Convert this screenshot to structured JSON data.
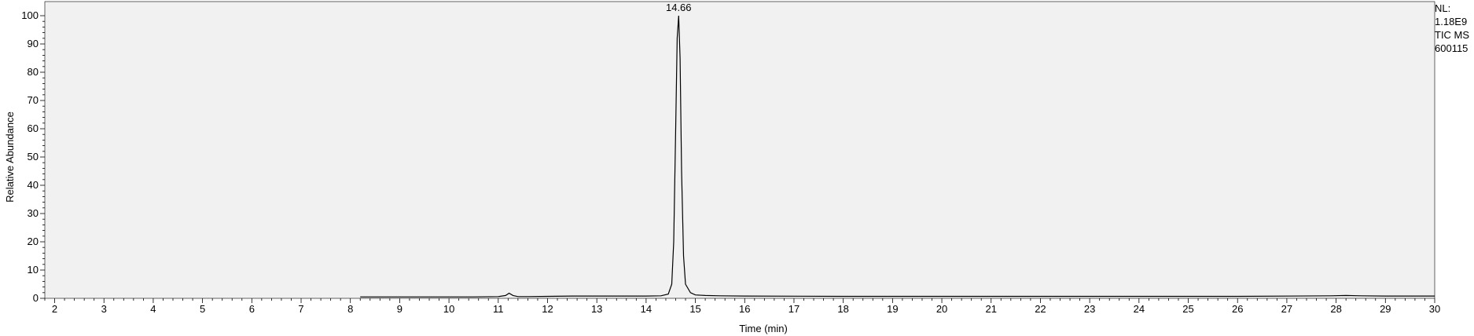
{
  "chart_data": {
    "type": "line",
    "title": "",
    "xlabel": "Time (min)",
    "ylabel": "Relative Abundance",
    "xlim": [
      1.8,
      30
    ],
    "ylim": [
      0,
      100
    ],
    "x_ticks": [
      "2",
      "3",
      "4",
      "5",
      "6",
      "7",
      "8",
      "9",
      "10",
      "11",
      "12",
      "13",
      "14",
      "15",
      "16",
      "17",
      "18",
      "19",
      "20",
      "21",
      "22",
      "23",
      "24",
      "25",
      "26",
      "27",
      "28",
      "29",
      "30"
    ],
    "y_ticks": [
      "0",
      "10",
      "20",
      "30",
      "40",
      "50",
      "60",
      "70",
      "80",
      "90",
      "100"
    ],
    "annotations": [
      {
        "x": 14.66,
        "y": 100,
        "text": "14.66"
      }
    ],
    "grid": false,
    "series": [
      {
        "x": [
          8.2,
          8.5,
          9,
          9.5,
          10,
          10.5,
          11,
          11.15,
          11.22,
          11.3,
          11.4,
          11.6,
          12,
          12.5,
          13,
          13.5,
          14,
          14.3,
          14.45,
          14.52,
          14.56,
          14.6,
          14.63,
          14.66,
          14.69,
          14.72,
          14.76,
          14.8,
          14.9,
          15,
          15.2,
          15.5,
          16,
          18,
          20,
          22,
          24,
          26,
          27.9,
          28.2,
          28.5,
          29,
          30
        ],
        "y": [
          0.5,
          0.5,
          0.5,
          0.5,
          0.5,
          0.5,
          0.6,
          1.0,
          1.8,
          1.0,
          0.6,
          0.6,
          0.7,
          0.8,
          0.8,
          0.8,
          0.8,
          0.9,
          1.5,
          5,
          20,
          60,
          92,
          100,
          85,
          45,
          15,
          5,
          2.0,
          1.2,
          1.0,
          0.9,
          0.8,
          0.7,
          0.7,
          0.7,
          0.7,
          0.7,
          0.9,
          1.0,
          0.9,
          0.8,
          0.8
        ]
      }
    ]
  },
  "side_info": {
    "line1": "NL:",
    "line2": "1.18E9",
    "line3": "TIC  MS",
    "line4": "600115"
  }
}
